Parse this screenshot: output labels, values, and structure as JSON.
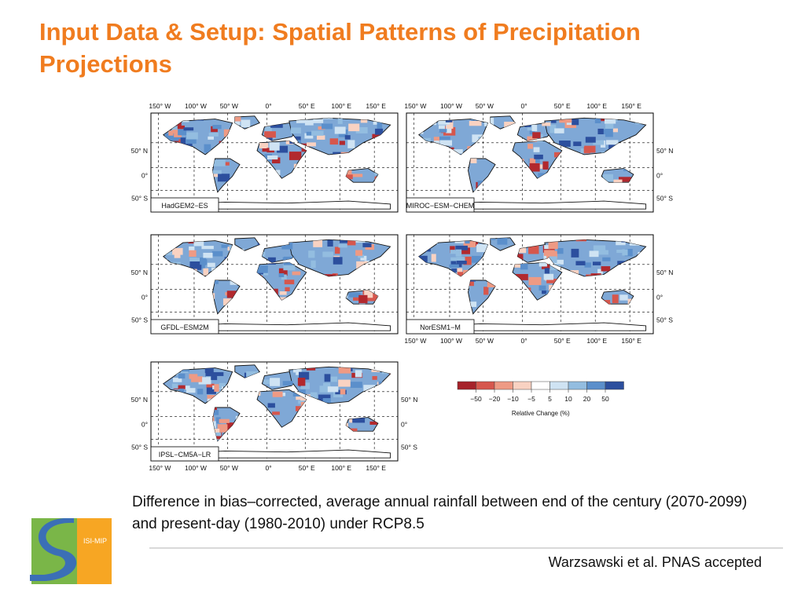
{
  "slide": {
    "title": "Input Data & Setup: Spatial Patterns of Precipitation Projections",
    "caption": "Difference in bias–corrected, average annual rainfall between end of the century (2070-2099) and present-day (1980-2010) under RCP8.5",
    "citation": "Warzsawski et al. PNAS accepted"
  },
  "figure": {
    "lon_labels": [
      "150° W",
      "100° W",
      "50° W",
      "0°",
      "50° E",
      "100° E",
      "150° E"
    ],
    "lat_labels": [
      "50° N",
      "0°",
      "50° S"
    ],
    "panels": [
      {
        "model": "HadGEM2−ES"
      },
      {
        "model": "MIROC−ESM−CHEM"
      },
      {
        "model": "GFDL−ESM2M"
      },
      {
        "model": "NorESM1−M"
      },
      {
        "model": "IPSL−CM5A−LR"
      }
    ],
    "legend": {
      "title": "Relative Change (%)",
      "tick_labels": [
        "−50",
        "−20",
        "−10",
        "−5",
        "5",
        "10",
        "20",
        "50"
      ],
      "colors": [
        "#a6222a",
        "#d6574d",
        "#ee9a84",
        "#f9d2c2",
        "#ffffff",
        "#cfe3f3",
        "#93bde0",
        "#5b8fcb",
        "#2c4f9e"
      ]
    }
  },
  "logo": {
    "text": "ISI-MIP"
  },
  "colors": {
    "title": "#f07c1f"
  }
}
